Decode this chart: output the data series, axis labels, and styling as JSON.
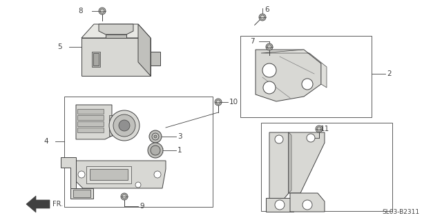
{
  "bg_color": "#ffffff",
  "line_color": "#404040",
  "fill_light": "#d8d8d4",
  "fill_mid": "#c0c0bc",
  "fill_dark": "#a8a8a4",
  "diagram_id": "SL03-B2311",
  "white": "#ffffff",
  "fig_w": 6.4,
  "fig_h": 3.19,
  "dpi": 100
}
